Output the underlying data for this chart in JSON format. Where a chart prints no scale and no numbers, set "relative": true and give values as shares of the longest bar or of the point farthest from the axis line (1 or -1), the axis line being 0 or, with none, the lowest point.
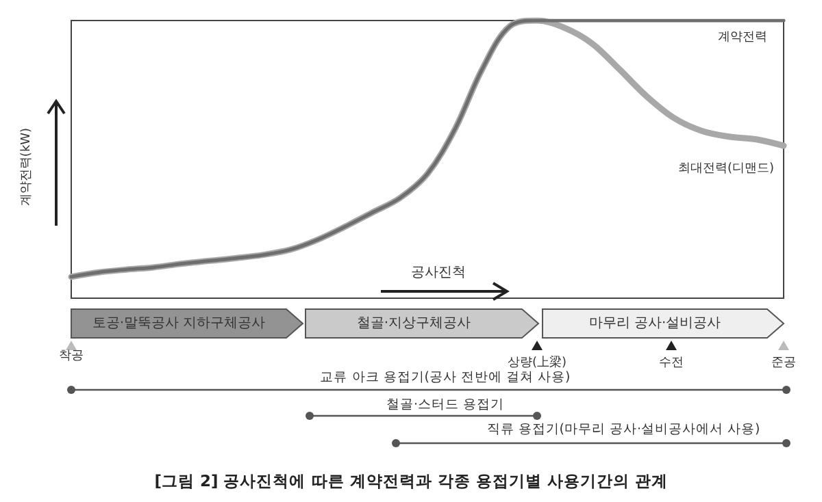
{
  "chart_data": {
    "type": "line",
    "relative": true,
    "title": "[그림 2] 공사진척에 따른 계약전력과 각종 용접기별 사용기간의 관계",
    "xlabel": "공사진척",
    "ylabel": "계약전력(kW)",
    "categories": [
      null,
      null,
      null,
      null,
      null,
      null,
      null,
      null,
      null,
      null,
      null,
      null,
      null,
      null,
      null,
      null,
      null,
      null,
      null,
      null,
      null,
      null,
      null,
      null,
      null,
      null,
      null
    ],
    "series": [
      {
        "name": "최대전력(디맨드)",
        "color": "#a8a8a8",
        "values": [
          0.077,
          0.093,
          0.103,
          0.111,
          0.124,
          0.134,
          0.144,
          0.156,
          0.175,
          0.211,
          0.258,
          0.309,
          0.361,
          0.448,
          0.608,
          0.825,
          0.979,
          1,
          0.974,
          0.918,
          0.825,
          0.727,
          0.649,
          0.603,
          0.582,
          0.572,
          0.549
        ]
      },
      {
        "name": "계약전력",
        "color": "#6e6e6e",
        "values": [
          0.077,
          0.093,
          0.103,
          0.111,
          0.124,
          0.134,
          0.144,
          0.156,
          0.175,
          0.211,
          0.258,
          0.309,
          0.361,
          0.448,
          0.608,
          0.825,
          0.979,
          1,
          1,
          1,
          1,
          1,
          1,
          1,
          1,
          1,
          1
        ]
      }
    ],
    "annotations": [
      "토공·말뚝공사 지하구체공사",
      "철골·지상구체공사",
      "마무리 공사·설비공사",
      "착공",
      "상량(上梁)",
      "수전",
      "준공",
      "교류 아크 용접기(공사 전반에 걸쳐 사용)",
      "철골·스터드 용접기",
      "직류 용접기(마무리 공사·설비공사에서 사용)"
    ]
  }
}
